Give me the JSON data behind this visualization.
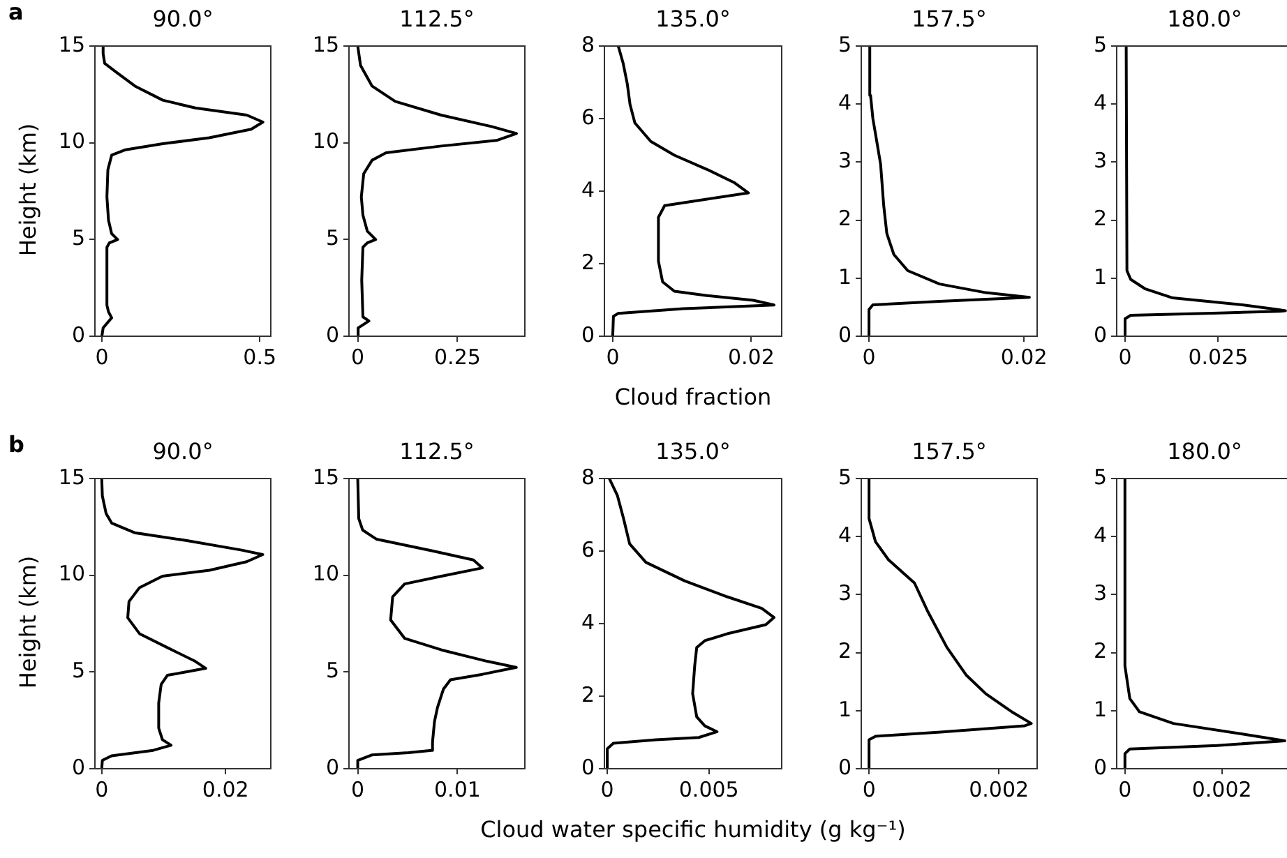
{
  "chart_data": [
    {
      "type": "line",
      "title": "90.0°",
      "ylabel": "Height (km)",
      "annotations": [
        "a"
      ],
      "xlim": [
        -0.022,
        0.535
      ],
      "xticks": [
        0,
        0.5
      ],
      "ylim": [
        0,
        15
      ],
      "yticks": [
        0,
        5,
        10,
        15
      ],
      "series": [
        {
          "color": "#000000",
          "x": [
            0,
            0.004,
            0.031,
            0.021,
            0.016,
            0.016,
            0.024,
            0.05,
            0.031,
            0.021,
            0.016,
            0.019,
            0.031,
            0.075,
            0.193,
            0.34,
            0.473,
            0.51,
            0.459,
            0.296,
            0.193,
            0.105,
            0.046,
            0.009,
            0.004,
            0.004
          ],
          "values": [
            0,
            0.43,
            0.95,
            1.26,
            1.6,
            4.6,
            4.83,
            5.0,
            5.3,
            6.0,
            7.2,
            8.6,
            9.36,
            9.64,
            9.95,
            10.26,
            10.7,
            11.07,
            11.43,
            11.8,
            12.2,
            12.93,
            13.64,
            14.1,
            14.6,
            15
          ]
        }
      ]
    },
    {
      "type": "line",
      "title": "112.5°",
      "xlim": [
        -0.022,
        0.419
      ],
      "xticks": [
        0,
        0.25
      ],
      "ylim": [
        0,
        15
      ],
      "yticks": [
        0,
        5,
        10,
        15
      ],
      "series": [
        {
          "color": "#000000",
          "x": [
            0,
            0.001,
            0.028,
            0.013,
            0.01,
            0.013,
            0.024,
            0.045,
            0.024,
            0.013,
            0.009,
            0.015,
            0.036,
            0.071,
            0.209,
            0.348,
            0.398,
            0.337,
            0.209,
            0.094,
            0.036,
            0.007,
            0
          ],
          "values": [
            0,
            0.43,
            0.79,
            1.0,
            2.9,
            4.6,
            4.83,
            5.0,
            5.43,
            6.26,
            7.2,
            8.4,
            9.1,
            9.48,
            9.83,
            10.12,
            10.48,
            10.83,
            11.43,
            12.14,
            12.93,
            14.0,
            15
          ]
        }
      ]
    },
    {
      "type": "line",
      "title": "135.0°",
      "xlabel": "Cloud fraction",
      "xlim": [
        -0.0012,
        0.0244
      ],
      "xticks": [
        0,
        0.02
      ],
      "ylim": [
        0,
        8
      ],
      "yticks": [
        0,
        2,
        4,
        6,
        8
      ],
      "series": [
        {
          "color": "#000000",
          "x": [
            0,
            0.0001,
            0.0008,
            0.0102,
            0.0233,
            0.0203,
            0.0136,
            0.0089,
            0.0072,
            0.0066,
            0.0066,
            0.0075,
            0.0136,
            0.0196,
            0.0176,
            0.0136,
            0.0089,
            0.0055,
            0.0032,
            0.0025,
            0.0021,
            0.0015,
            0.0008
          ],
          "values": [
            0,
            0.55,
            0.63,
            0.76,
            0.86,
            0.99,
            1.12,
            1.24,
            1.5,
            2.07,
            3.28,
            3.6,
            3.78,
            3.95,
            4.23,
            4.6,
            4.99,
            5.37,
            5.88,
            6.39,
            6.96,
            7.53,
            8
          ]
        }
      ]
    },
    {
      "type": "line",
      "title": "157.5°",
      "xlim": [
        -0.001,
        0.0217
      ],
      "xticks": [
        0,
        0.02
      ],
      "ylim": [
        0,
        5
      ],
      "yticks": [
        0,
        1,
        2,
        3,
        4,
        5
      ],
      "series": [
        {
          "color": "#000000",
          "x": [
            0,
            0,
            0.0005,
            0.0091,
            0.0207,
            0.0151,
            0.0091,
            0.005,
            0.0032,
            0.0023,
            0.0019,
            0.0015,
            0.0011,
            0.0005,
            0.0002,
            0.0001
          ],
          "values": [
            0,
            0.46,
            0.54,
            0.6,
            0.67,
            0.75,
            0.9,
            1.13,
            1.41,
            1.77,
            2.25,
            2.96,
            3.28,
            3.75,
            4.15,
            5
          ]
        }
      ]
    },
    {
      "type": "line",
      "title": "180.0°",
      "xlim": [
        -0.00225,
        0.045
      ],
      "xticks": [
        0,
        0.025
      ],
      "ylim": [
        0,
        5
      ],
      "yticks": [
        0,
        1,
        2,
        3,
        4,
        5
      ],
      "series": [
        {
          "color": "#000000",
          "x": [
            0,
            0,
            0.0015,
            0.0253,
            0.0415,
            0.0431,
            0.041,
            0.0315,
            0.0128,
            0.0053,
            0.0015,
            0.0005,
            0.0003
          ],
          "values": [
            0,
            0.3,
            0.36,
            0.4,
            0.43,
            0.44,
            0.46,
            0.54,
            0.66,
            0.82,
            0.98,
            1.13,
            5
          ]
        }
      ]
    },
    {
      "type": "line",
      "title": "90.0°",
      "ylabel": "Height (km)",
      "annotations": [
        "b"
      ],
      "xlim": [
        -0.0011,
        0.0273
      ],
      "xticks": [
        0,
        0.02
      ],
      "ylim": [
        0,
        15
      ],
      "yticks": [
        0,
        5,
        10,
        15
      ],
      "series": [
        {
          "color": "#000000",
          "x": [
            0,
            0.0001,
            0.0016,
            0.0083,
            0.0112,
            0.0098,
            0.0092,
            0.0092,
            0.0096,
            0.0106,
            0.0136,
            0.0168,
            0.0151,
            0.0106,
            0.0061,
            0.0042,
            0.0044,
            0.0061,
            0.0098,
            0.0174,
            0.0234,
            0.026,
            0.0226,
            0.0136,
            0.0053,
            0.0016,
            0.0007,
            0.0001,
            0
          ],
          "values": [
            0,
            0.43,
            0.67,
            0.95,
            1.21,
            1.5,
            2.1,
            3.4,
            4.36,
            4.83,
            5.0,
            5.19,
            5.55,
            6.26,
            6.98,
            7.8,
            8.64,
            9.36,
            9.95,
            10.26,
            10.7,
            11.07,
            11.3,
            11.8,
            12.2,
            12.7,
            13.2,
            14.1,
            15
          ]
        }
      ]
    },
    {
      "type": "line",
      "title": "112.5°",
      "xlim": [
        -0.00088,
        0.01676
      ],
      "xticks": [
        0,
        0.01
      ],
      "ylim": [
        0,
        15
      ],
      "yticks": [
        0,
        5,
        10,
        15
      ],
      "series": [
        {
          "color": "#000000",
          "x": [
            0,
            0,
            0.0014,
            0.0051,
            0.0074,
            0.0075,
            0.0077,
            0.008,
            0.0086,
            0.0093,
            0.0125,
            0.0159,
            0.013,
            0.0084,
            0.0047,
            0.0033,
            0.0035,
            0.0047,
            0.0084,
            0.0125,
            0.0116,
            0.0075,
            0.0019,
            0.0005,
            0.0001,
            0
          ],
          "values": [
            0,
            0.43,
            0.71,
            0.83,
            0.95,
            1.38,
            2.45,
            3.17,
            4.12,
            4.6,
            4.88,
            5.24,
            5.55,
            6.14,
            6.74,
            7.69,
            8.88,
            9.55,
            9.95,
            10.38,
            10.79,
            11.26,
            11.86,
            12.33,
            12.93,
            15
          ]
        }
      ]
    },
    {
      "type": "line",
      "title": "135.0°",
      "xlabel": "Cloud water specific humidity (g kg⁻¹)",
      "xlim": [
        -0.00014,
        0.00858
      ],
      "xticks": [
        0,
        0.005
      ],
      "ylim": [
        0,
        8
      ],
      "yticks": [
        0,
        2,
        4,
        6,
        8
      ],
      "series": [
        {
          "color": "#000000",
          "x": [
            0,
            0,
            0.0003,
            0.0024,
            0.0045,
            0.0054,
            0.0048,
            0.0044,
            0.0042,
            0.0043,
            0.0044,
            0.0048,
            0.0059,
            0.0078,
            0.0082,
            0.0076,
            0.0059,
            0.0038,
            0.0019,
            0.0011,
            0.0008,
            0.0005,
            0.0001
          ],
          "values": [
            0,
            0.55,
            0.7,
            0.8,
            0.86,
            1.02,
            1.18,
            1.43,
            2.07,
            2.83,
            3.34,
            3.53,
            3.72,
            3.97,
            4.17,
            4.42,
            4.74,
            5.18,
            5.69,
            6.2,
            6.9,
            7.53,
            8
          ]
        }
      ]
    },
    {
      "type": "line",
      "title": "157.5°",
      "xlim": [
        -0.00012,
        0.00259
      ],
      "xticks": [
        0,
        0.002
      ],
      "ylim": [
        0,
        5
      ],
      "yticks": [
        0,
        1,
        2,
        3,
        4,
        5
      ],
      "series": [
        {
          "color": "#000000",
          "x": [
            0,
            0,
            0.0001,
            0.0011,
            0.0024,
            0.0025,
            0.0022,
            0.0018,
            0.0015,
            0.0012,
            0.0009,
            0.0007,
            0.0003,
            0.0001,
            0,
            0
          ],
          "values": [
            0,
            0.5,
            0.56,
            0.63,
            0.74,
            0.78,
            0.98,
            1.29,
            1.61,
            2.09,
            2.72,
            3.2,
            3.6,
            3.91,
            4.31,
            5
          ]
        }
      ]
    },
    {
      "type": "line",
      "title": "180.0°",
      "xlim": [
        -0.00017,
        0.00346
      ],
      "xticks": [
        0,
        0.002
      ],
      "ylim": [
        0,
        5
      ],
      "yticks": [
        0,
        1,
        2,
        3,
        4,
        5
      ],
      "series": [
        {
          "color": "#000000",
          "x": [
            0,
            0,
            0.0001,
            0.0019,
            0.0033,
            0.0024,
            0.001,
            0.0003,
            0.0001,
            0,
            0
          ],
          "values": [
            0,
            0.26,
            0.34,
            0.4,
            0.48,
            0.6,
            0.78,
            0.98,
            1.21,
            1.77,
            5
          ]
        }
      ]
    }
  ]
}
